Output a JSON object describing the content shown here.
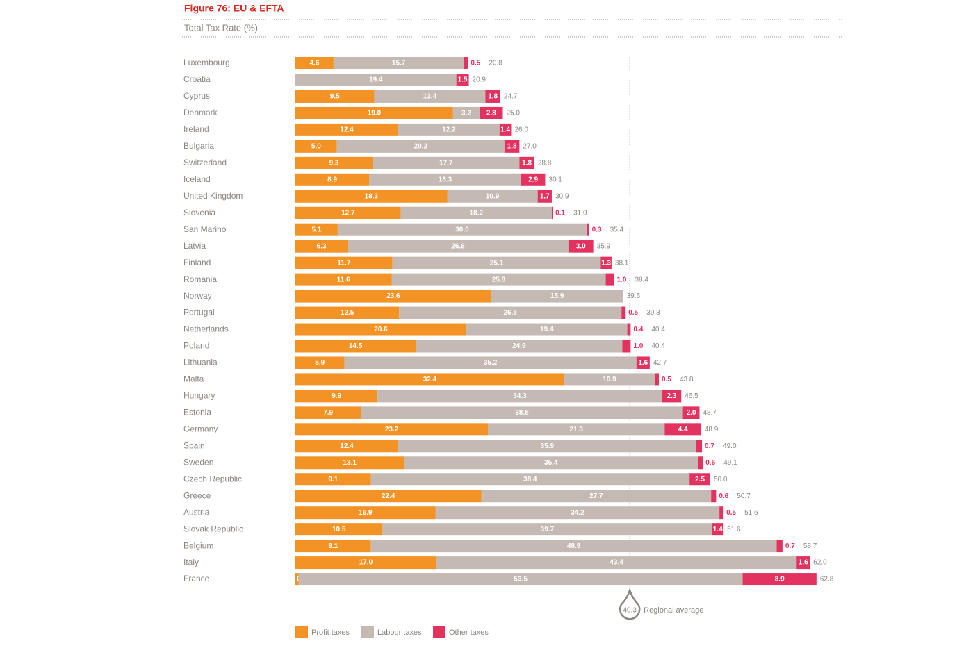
{
  "chart_data": {
    "type": "bar",
    "orientation": "horizontal",
    "stacked": true,
    "title": "Figure 76: EU & EFTA",
    "subtitle": "Total Tax Rate (%)",
    "categories": [
      "Luxembourg",
      "Croatia",
      "Cyprus",
      "Denmark",
      "Ireland",
      "Bulgaria",
      "Switzerland",
      "Iceland",
      "United Kingdom",
      "Slovenia",
      "San Marino",
      "Latvia",
      "Finland",
      "Romania",
      "Norway",
      "Portugal",
      "Netherlands",
      "Poland",
      "Lithuania",
      "Malta",
      "Hungary",
      "Estonia",
      "Germany",
      "Spain",
      "Sweden",
      "Czech Republic",
      "Greece",
      "Austria",
      "Slovak Republic",
      "Belgium",
      "Italy",
      "France"
    ],
    "series": [
      {
        "name": "Profit taxes",
        "color": "#f39325",
        "values": [
          4.6,
          null,
          9.5,
          19.0,
          12.4,
          5.0,
          9.3,
          8.9,
          18.3,
          12.7,
          5.1,
          6.3,
          11.7,
          11.6,
          23.6,
          12.5,
          20.6,
          14.5,
          5.9,
          32.4,
          9.9,
          7.9,
          23.2,
          12.4,
          13.1,
          9.1,
          22.4,
          16.9,
          10.5,
          9.1,
          17.0,
          0.4
        ],
        "value_labels": [
          "4.6",
          null,
          "9.5",
          "19.0",
          "12.4",
          "5.0",
          "9.3",
          "8.9",
          "18.3",
          "12.7",
          "5.1",
          "6.3",
          "11.7",
          "11.6",
          "23.6",
          "12.5",
          "20.6",
          "14.5",
          "5.9",
          "32.4",
          "9.9",
          "7.9",
          "23.2",
          "12.4",
          "13.1",
          "9.1",
          "22.4",
          "16.9",
          "10.5",
          "9.1",
          "17.0",
          "0.4"
        ]
      },
      {
        "name": "Labour taxes",
        "color": "#c4bab3",
        "values": [
          15.7,
          19.4,
          13.4,
          3.2,
          12.2,
          20.2,
          17.7,
          18.3,
          10.9,
          18.2,
          30.0,
          26.6,
          25.1,
          25.8,
          15.9,
          26.8,
          19.4,
          24.9,
          35.2,
          10.9,
          34.3,
          38.8,
          21.3,
          35.9,
          35.4,
          38.4,
          27.7,
          34.2,
          39.7,
          48.9,
          43.4,
          53.5
        ],
        "value_labels": [
          "15.7",
          "19.4",
          "13.4",
          "3.2",
          "12.2",
          "20.2",
          "17.7",
          "18.3",
          "10.9",
          "18.2",
          "30.0",
          "26.6",
          "25.1",
          "25.8",
          "15.9",
          "26.8",
          "19.4",
          "24.9",
          "35.2",
          "10.9",
          "34.3",
          "38.8",
          "21.3",
          "35.9",
          "35.4",
          "38.4",
          "27.7",
          "34.2",
          "39.7",
          "48.9",
          "43.4",
          "53.5"
        ]
      },
      {
        "name": "Other taxes",
        "color": "#e2325f",
        "values": [
          0.5,
          1.5,
          1.8,
          2.8,
          1.4,
          1.8,
          1.8,
          2.9,
          1.7,
          0.1,
          0.3,
          3.0,
          1.3,
          1.0,
          null,
          0.5,
          0.4,
          1.0,
          1.6,
          0.5,
          2.3,
          2.0,
          4.4,
          0.7,
          0.6,
          2.5,
          0.6,
          0.5,
          1.4,
          0.7,
          1.6,
          8.9
        ],
        "value_labels": [
          "0.5",
          "1.5",
          "1.8",
          "2.8",
          "1.4",
          "1.8",
          "1.8",
          "2.9",
          "1.7",
          "0.1",
          "0.3",
          "3.0",
          "1.3",
          "1.0",
          null,
          "0.5",
          "0.4",
          "1.0",
          "1.6",
          "0.5",
          "2.3",
          "2.0",
          "4.4",
          "0.7",
          "0.6",
          "2.5",
          "0.6",
          "0.5",
          "1.4",
          "0.7",
          "1.6",
          "8.9"
        ]
      }
    ],
    "totals": [
      20.8,
      20.9,
      24.7,
      25.0,
      26.0,
      27.0,
      28.8,
      30.1,
      30.9,
      31.0,
      35.4,
      35.9,
      38.1,
      38.4,
      39.5,
      39.8,
      40.4,
      40.4,
      42.7,
      43.8,
      46.5,
      48.7,
      48.9,
      49.0,
      49.1,
      50.0,
      50.7,
      51.6,
      51.6,
      58.7,
      62.0,
      62.8
    ],
    "total_labels": [
      "20.8",
      "20.9",
      "24.7",
      "25.0",
      "26.0",
      "27.0",
      "28.8",
      "30.1",
      "30.9",
      "31.0",
      "35.4",
      "35.9",
      "38.1",
      "38.4",
      "39.5",
      "39.8",
      "40.4",
      "40.4",
      "42.7",
      "43.8",
      "46.5",
      "48.7",
      "48.9",
      "49.0",
      "49.1",
      "50.0",
      "50.7",
      "51.6",
      "51.6",
      "58.7",
      "62.0",
      "62.8"
    ],
    "average": {
      "value": 40.3,
      "label": "Regional average"
    }
  }
}
